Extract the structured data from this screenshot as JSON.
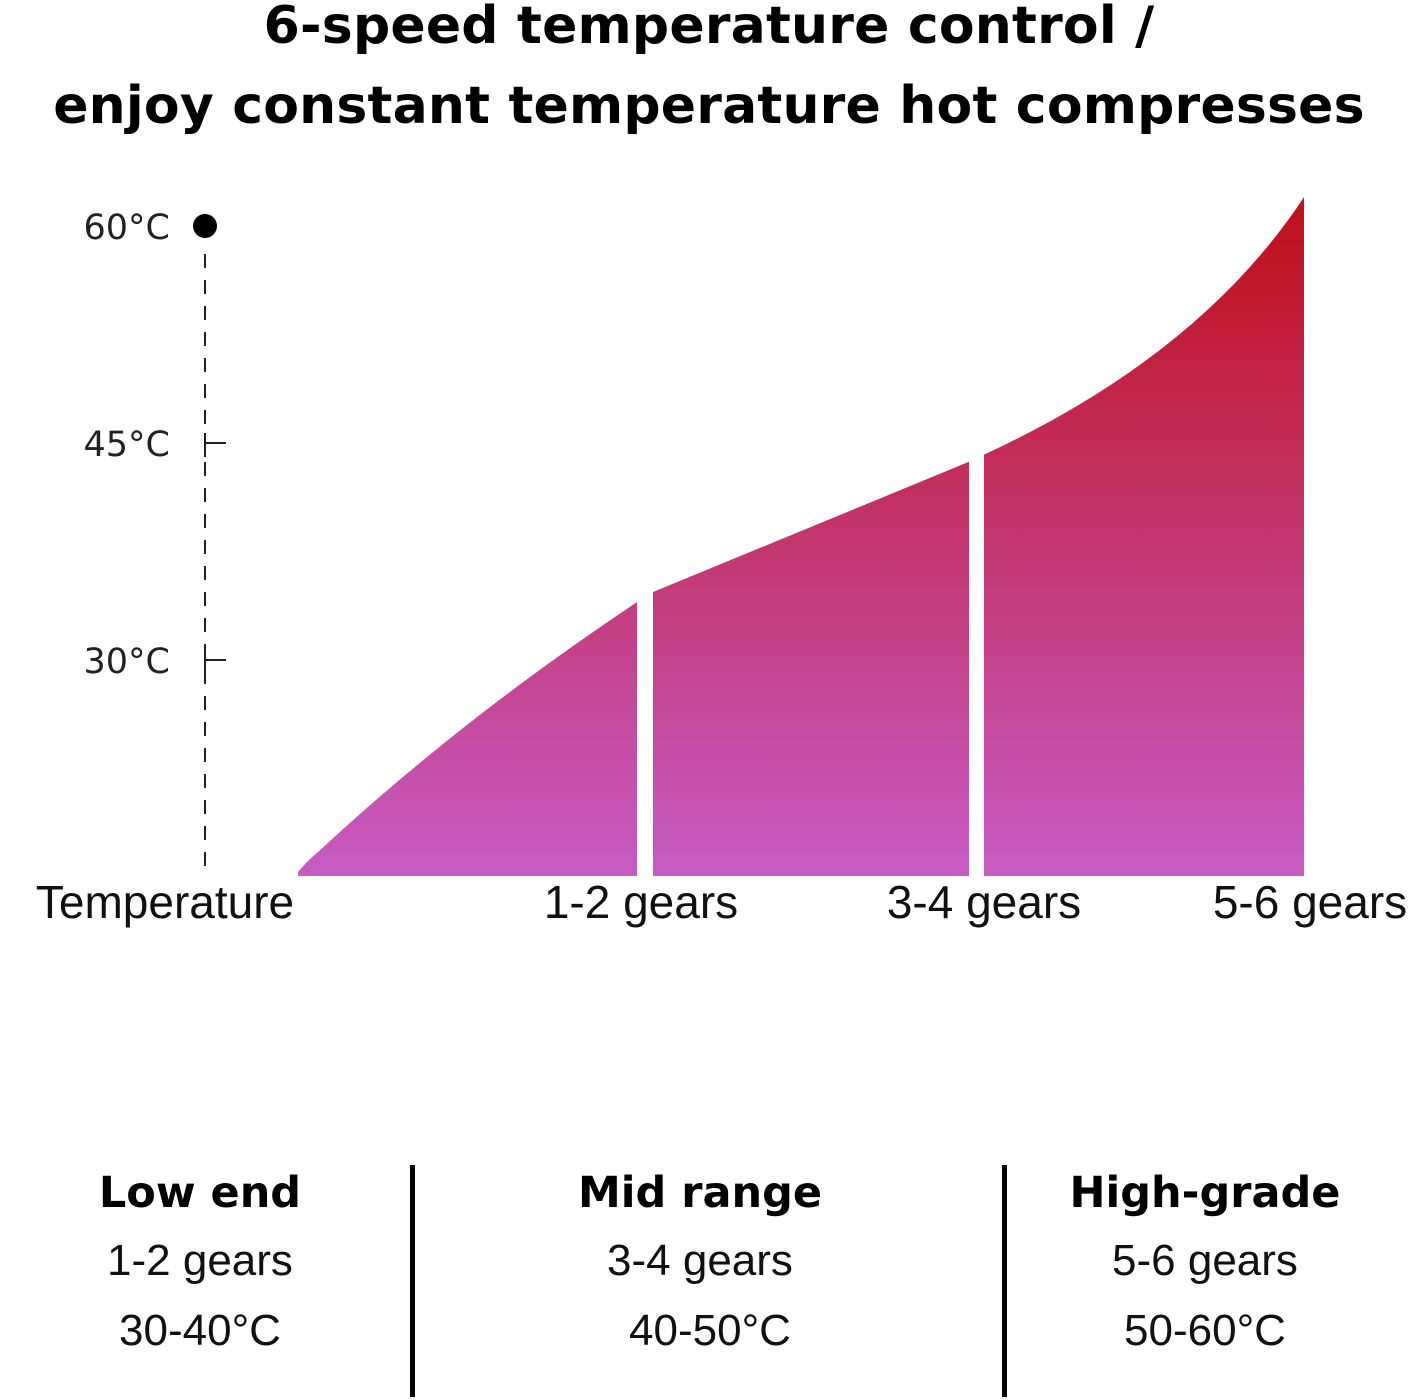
{
  "title": {
    "line1": "6-speed temperature control /",
    "line2": "enjoy constant temperature hot compresses"
  },
  "chart_data": {
    "type": "area",
    "y_axis": {
      "ticks": [
        {
          "value": 60,
          "label": "60°C",
          "marker": "dot"
        },
        {
          "value": 45,
          "label": "45°C",
          "marker": "tick"
        },
        {
          "value": 30,
          "label": "30°C",
          "marker": "tick"
        }
      ],
      "axis_label": "Temperature",
      "style": "dashed"
    },
    "segments": [
      {
        "label": "1-2 gears",
        "start_temp": 16,
        "end_temp": 34
      },
      {
        "label": "3-4 gears",
        "start_temp": 34.7,
        "end_temp": 43.7
      },
      {
        "label": "5-6 gears",
        "start_temp": 44.2,
        "end_temp": 62
      }
    ],
    "gradient": {
      "top": "#c0121e",
      "bottom": "#c65cc4"
    }
  },
  "summary": [
    {
      "heading": "Low end",
      "gears": "1-2 gears",
      "range": "30-40°C"
    },
    {
      "heading": "Mid range",
      "gears": "3-4 gears",
      "range": "40-50°C"
    },
    {
      "heading": "High-grade",
      "gears": "5-6 gears",
      "range": "50-60°C"
    }
  ]
}
